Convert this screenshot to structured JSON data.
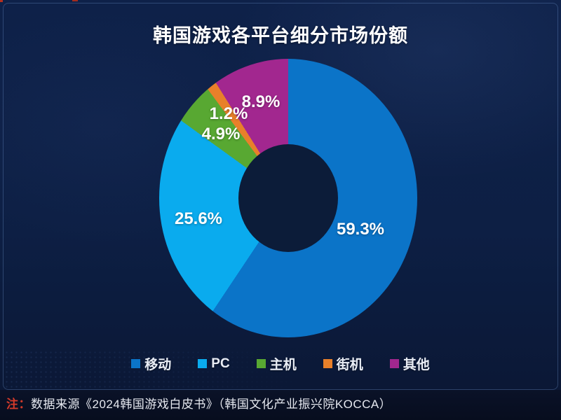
{
  "title": "韩国游戏各平台细分市场份额",
  "footer": {
    "note_prefix": "注：",
    "note_text": "数据来源《2024韩国游戏白皮书》（韩国文化产业振兴院KOCCA）",
    "note_prefix_color": "#d23a2a"
  },
  "chart_data": {
    "type": "pie",
    "subtype": "donut",
    "title": "韩国游戏各平台细分市场份额",
    "unit": "%",
    "start_angle_deg": 0,
    "direction": "clockwise",
    "legend_position": "bottom",
    "hole_color": "#0c1c39",
    "series": [
      {
        "name": "移动",
        "value": 59.3,
        "label": "59.3%",
        "color": "#0b74c8"
      },
      {
        "name": "PC",
        "value": 25.6,
        "label": "25.6%",
        "color": "#0aabee"
      },
      {
        "name": "主机",
        "value": 4.9,
        "label": "4.9%",
        "color": "#58a832"
      },
      {
        "name": "街机",
        "value": 1.2,
        "label": "1.2%",
        "color": "#e8802a"
      },
      {
        "name": "其他",
        "value": 8.9,
        "label": "8.9%",
        "color": "#a2278f"
      }
    ]
  },
  "colors": {
    "background": "#0d2045",
    "footer_band": "#080f22",
    "title_text": "#ffffff",
    "label_text": "#ffffff"
  }
}
